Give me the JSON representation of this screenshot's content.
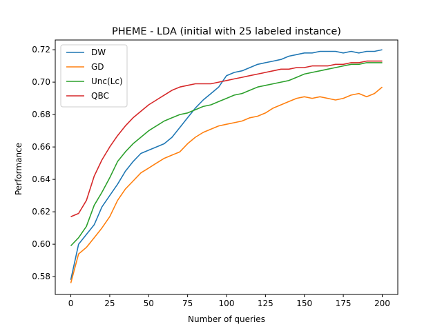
{
  "chart_data": {
    "type": "line",
    "title": "PHEME - LDA (initial with 25 labeled instance)",
    "xlabel": "Number of queries",
    "ylabel": "Performance",
    "xlim": [
      -10,
      210
    ],
    "ylim": [
      0.569,
      0.726
    ],
    "xticks": [
      0,
      25,
      50,
      75,
      100,
      125,
      150,
      175,
      200
    ],
    "yticks": [
      0.58,
      0.6,
      0.62,
      0.64,
      0.66,
      0.68,
      0.7,
      0.72
    ],
    "ytick_labels": [
      "0.58",
      "0.60",
      "0.62",
      "0.64",
      "0.66",
      "0.68",
      "0.70",
      "0.72"
    ],
    "grid": false,
    "legend_position": "top-left",
    "x": [
      0,
      5,
      10,
      15,
      20,
      25,
      30,
      35,
      40,
      45,
      50,
      55,
      60,
      65,
      70,
      75,
      80,
      85,
      90,
      95,
      100,
      105,
      110,
      115,
      120,
      125,
      130,
      135,
      140,
      145,
      150,
      155,
      160,
      165,
      170,
      175,
      180,
      185,
      190,
      195,
      200
    ],
    "series": [
      {
        "name": "DW",
        "color": "#1f77b4",
        "values": [
          0.578,
          0.6,
          0.606,
          0.612,
          0.623,
          0.63,
          0.637,
          0.645,
          0.651,
          0.656,
          0.658,
          0.66,
          0.662,
          0.666,
          0.672,
          0.678,
          0.684,
          0.689,
          0.693,
          0.697,
          0.704,
          0.706,
          0.707,
          0.709,
          0.711,
          0.712,
          0.713,
          0.714,
          0.716,
          0.717,
          0.718,
          0.718,
          0.719,
          0.719,
          0.719,
          0.718,
          0.719,
          0.718,
          0.719,
          0.719,
          0.72
        ]
      },
      {
        "name": "GD",
        "color": "#ff7f0e",
        "values": [
          0.576,
          0.594,
          0.598,
          0.604,
          0.61,
          0.617,
          0.627,
          0.634,
          0.639,
          0.644,
          0.647,
          0.65,
          0.653,
          0.655,
          0.657,
          0.662,
          0.666,
          0.669,
          0.671,
          0.673,
          0.674,
          0.675,
          0.676,
          0.678,
          0.679,
          0.681,
          0.684,
          0.686,
          0.688,
          0.69,
          0.691,
          0.69,
          0.691,
          0.69,
          0.689,
          0.69,
          0.692,
          0.693,
          0.691,
          0.693,
          0.697
        ]
      },
      {
        "name": "Unc(Lc)",
        "color": "#2ca02c",
        "values": [
          0.599,
          0.604,
          0.611,
          0.624,
          0.632,
          0.641,
          0.651,
          0.657,
          0.662,
          0.666,
          0.67,
          0.673,
          0.676,
          0.678,
          0.68,
          0.681,
          0.683,
          0.685,
          0.686,
          0.688,
          0.69,
          0.692,
          0.693,
          0.695,
          0.697,
          0.698,
          0.699,
          0.7,
          0.701,
          0.703,
          0.705,
          0.706,
          0.707,
          0.708,
          0.709,
          0.71,
          0.711,
          0.711,
          0.712,
          0.712,
          0.712
        ]
      },
      {
        "name": "QBC",
        "color": "#d62728",
        "values": [
          0.617,
          0.619,
          0.627,
          0.642,
          0.652,
          0.66,
          0.667,
          0.673,
          0.678,
          0.682,
          0.686,
          0.689,
          0.692,
          0.695,
          0.697,
          0.698,
          0.699,
          0.699,
          0.699,
          0.7,
          0.701,
          0.702,
          0.703,
          0.704,
          0.705,
          0.706,
          0.707,
          0.708,
          0.708,
          0.709,
          0.709,
          0.71,
          0.71,
          0.71,
          0.711,
          0.711,
          0.712,
          0.712,
          0.713,
          0.713,
          0.713
        ]
      }
    ]
  }
}
